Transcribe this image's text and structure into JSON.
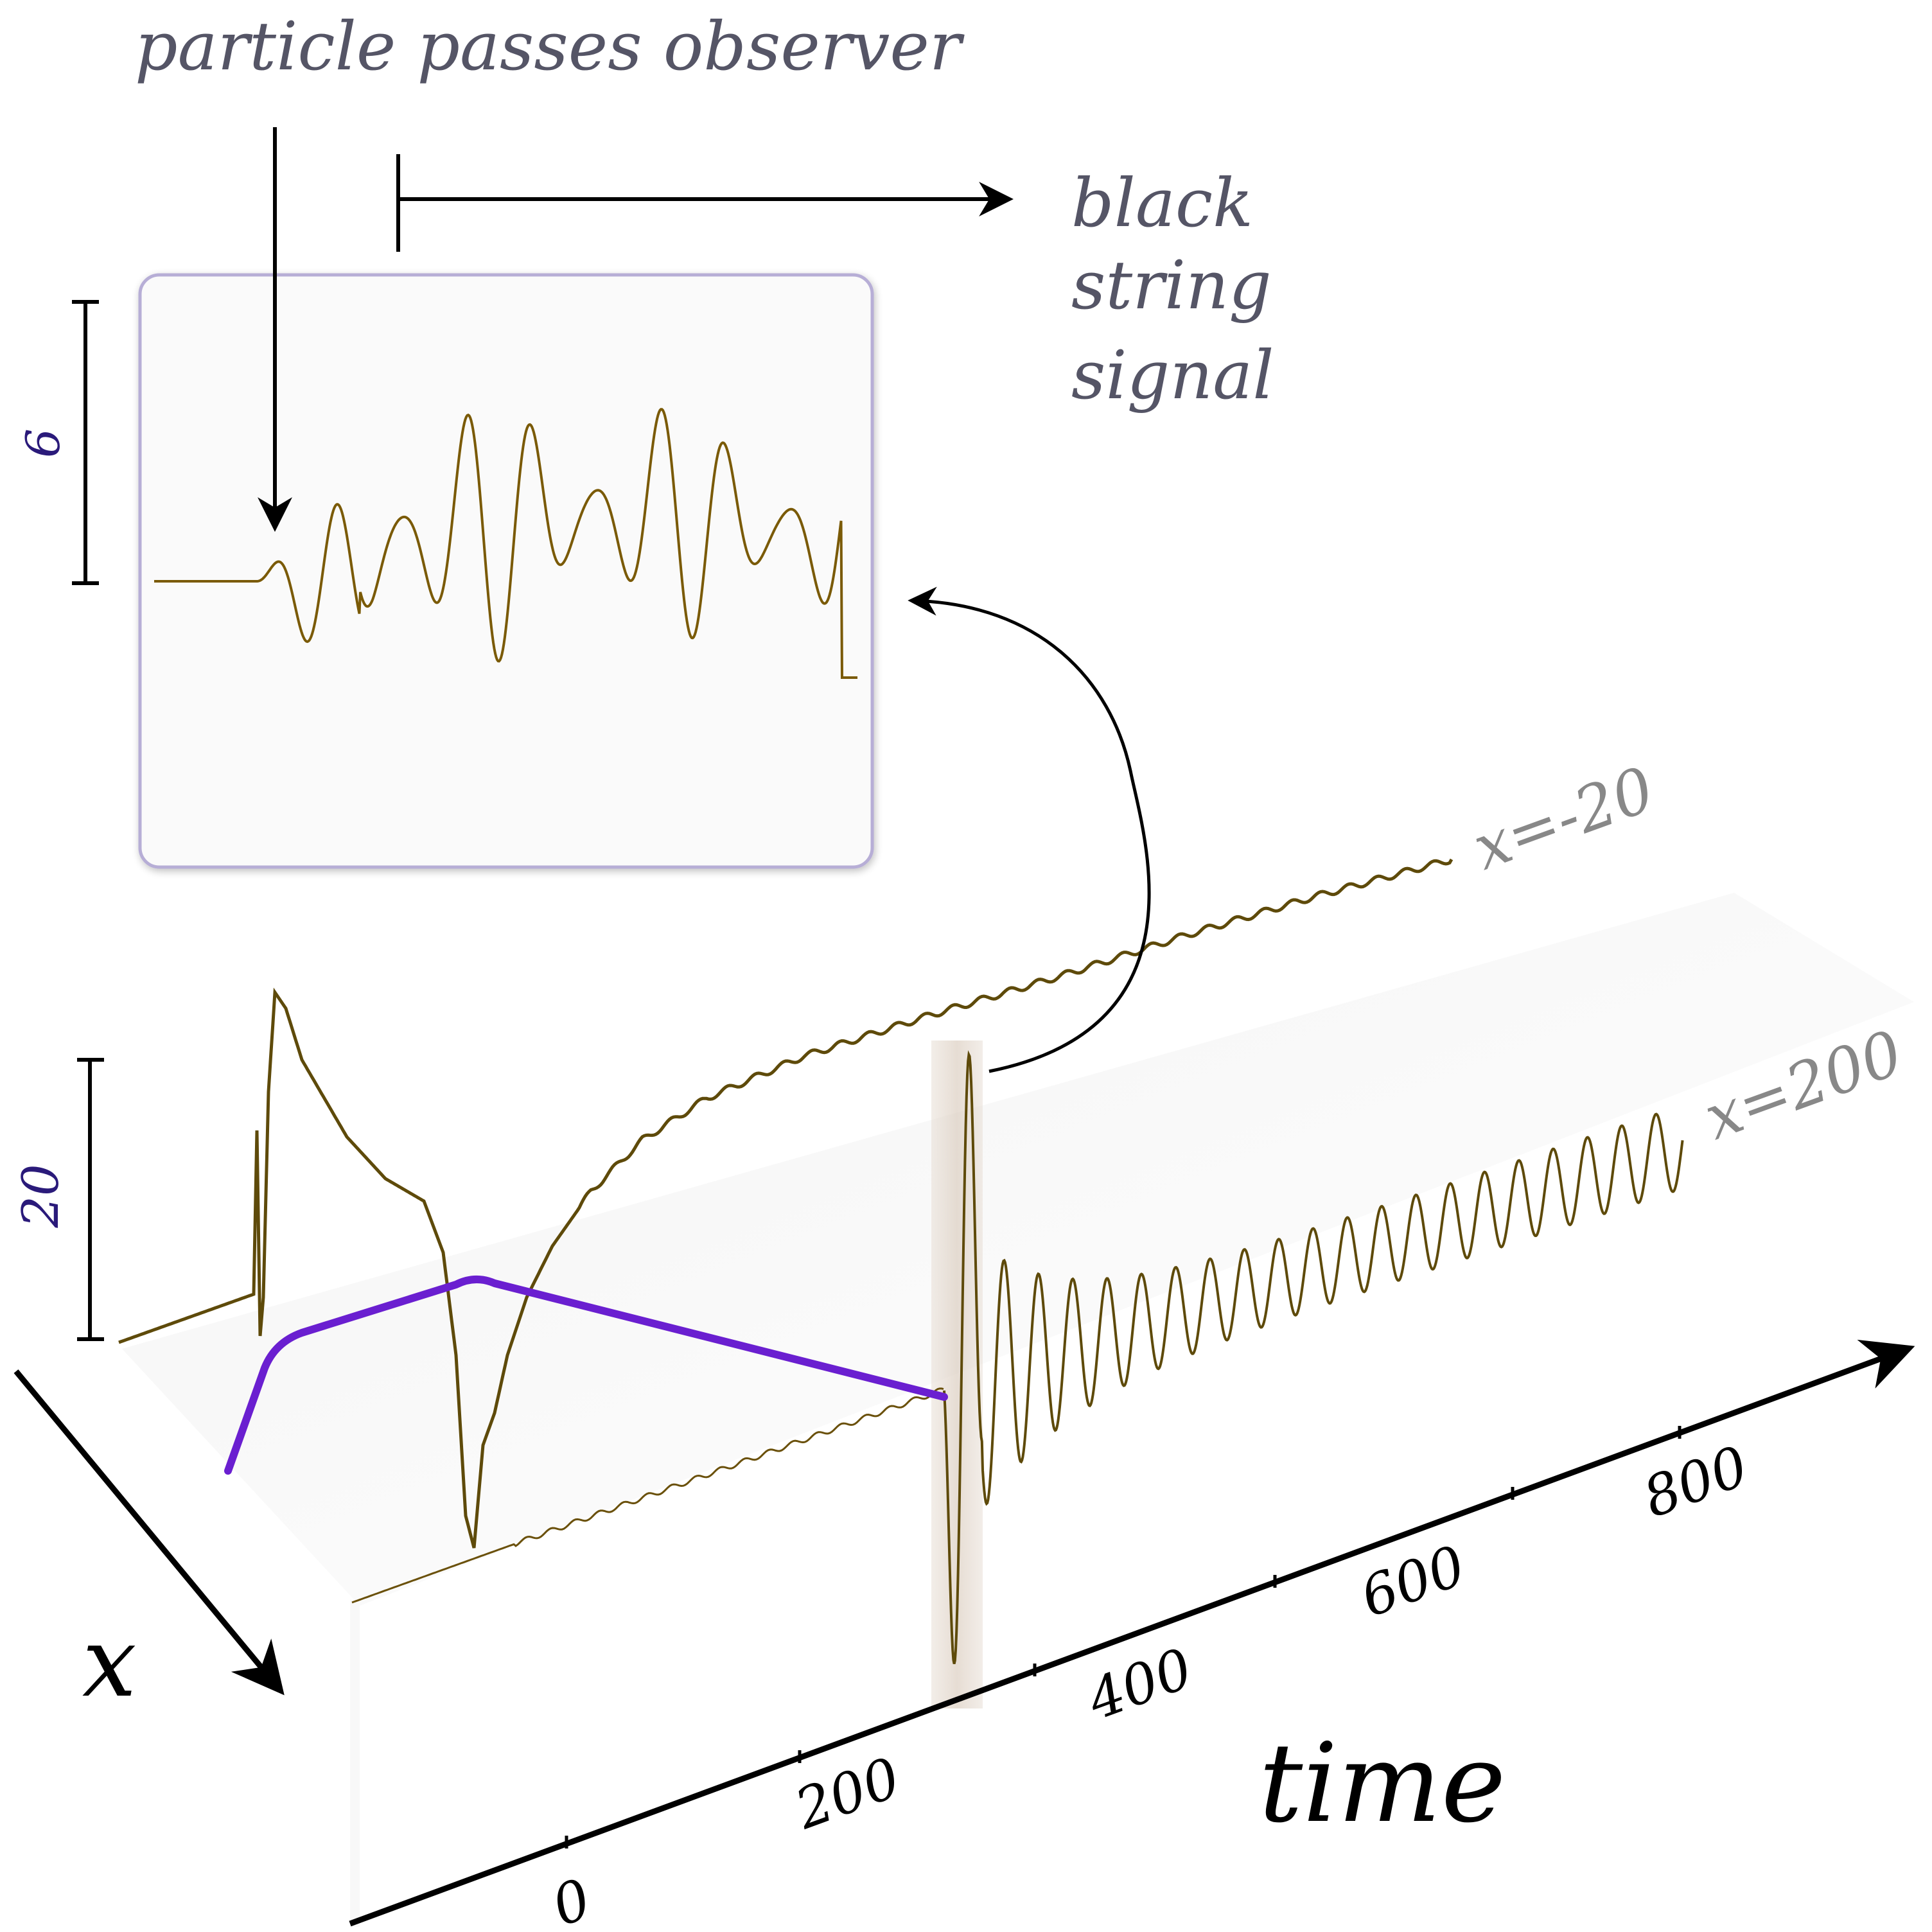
{
  "labels": {
    "particle_passes": "particle passes observer",
    "black_string_1": "black",
    "black_string_2": "string",
    "black_string_3": "signal",
    "scale_inset": "6",
    "scale_main": "20",
    "series_upper": "x=-20",
    "series_lower": "x=200",
    "axis_x": "x",
    "axis_time": "time",
    "tick_0": "0",
    "tick_200": "200",
    "tick_400": "400",
    "tick_600": "600",
    "tick_800": "800"
  },
  "colors": {
    "signal": "#7a5a06",
    "signal_dark": "#5e4a0a",
    "worldline": "#6a1fd0",
    "annotation_text": "#555566",
    "series_label": "#888888",
    "scale_label": "#2a1a7a",
    "inset_border": "#b7aed6",
    "inset_fill": "#fafafa"
  }
}
